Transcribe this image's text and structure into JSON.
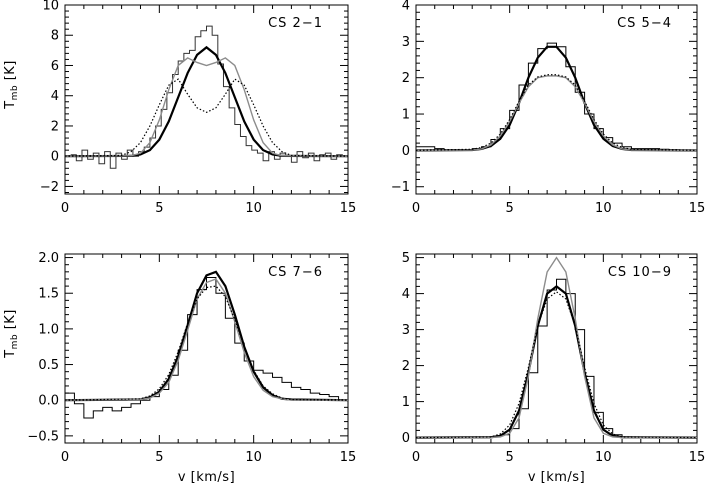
{
  "chart_data": [
    {
      "type": "line",
      "title": "CS 2−1",
      "ylabel": "T",
      "ylabel_sub": "mb",
      "ylabel_unit": "[K]",
      "xlabel": "",
      "xlim": [
        0,
        15
      ],
      "ylim": [
        -2.5,
        10
      ],
      "xticks": [
        0,
        5,
        10,
        15
      ],
      "yticks": [
        -2,
        0,
        2,
        4,
        6,
        8,
        10
      ],
      "observed": {
        "style": "histogram",
        "x": [
          0.3,
          0.6,
          0.9,
          1.2,
          1.5,
          1.8,
          2.1,
          2.4,
          2.7,
          3.0,
          3.3,
          3.6,
          3.9,
          4.2,
          4.5,
          4.8,
          5.1,
          5.4,
          5.7,
          6.0,
          6.3,
          6.6,
          6.9,
          7.2,
          7.5,
          7.8,
          8.1,
          8.4,
          8.7,
          9.0,
          9.3,
          9.6,
          9.9,
          10.2,
          10.5,
          10.8,
          11.1,
          11.4,
          11.7,
          12.0,
          12.3,
          12.6,
          12.9,
          13.2,
          13.5,
          13.8,
          14.1,
          14.4,
          14.7
        ],
        "y": [
          0.1,
          -0.3,
          0.4,
          -0.2,
          0.2,
          -0.5,
          0.3,
          -0.8,
          0.2,
          -0.2,
          0.4,
          0.0,
          0.3,
          0.6,
          1.2,
          2.0,
          3.1,
          4.2,
          5.4,
          6.3,
          6.8,
          7.0,
          7.9,
          8.3,
          8.6,
          8.0,
          6.1,
          4.6,
          3.2,
          2.1,
          1.3,
          0.7,
          0.4,
          0.2,
          -0.3,
          0.3,
          -0.2,
          0.2,
          0.0,
          -0.4,
          0.3,
          -0.1,
          0.2,
          -0.3,
          0.1,
          0.2,
          -0.2,
          0.1,
          0.0
        ]
      },
      "models": [
        {
          "style": "thick",
          "x": [
            0,
            3.5,
            4,
            4.5,
            5,
            5.5,
            6,
            6.5,
            7,
            7.5,
            8,
            8.5,
            9,
            9.5,
            10,
            10.5,
            11,
            11.5,
            15
          ],
          "y": [
            0,
            0.02,
            0.12,
            0.4,
            1.1,
            2.3,
            3.9,
            5.5,
            6.7,
            7.2,
            6.7,
            5.5,
            3.9,
            2.3,
            1.1,
            0.4,
            0.12,
            0.02,
            0
          ]
        },
        {
          "style": "gray",
          "x": [
            0,
            3.5,
            4,
            4.5,
            5,
            5.5,
            6,
            6.5,
            7,
            7.5,
            8,
            8.5,
            9,
            9.5,
            10,
            10.5,
            11,
            11.5,
            15
          ],
          "y": [
            0,
            0.03,
            0.2,
            0.9,
            2.4,
            4.4,
            6.0,
            6.5,
            6.2,
            6.0,
            6.2,
            6.5,
            6.0,
            4.4,
            2.4,
            0.9,
            0.2,
            0.03,
            0
          ]
        },
        {
          "style": "dotted",
          "x": [
            0,
            3,
            3.5,
            4,
            4.5,
            5,
            5.5,
            6,
            6.5,
            7,
            7.5,
            8,
            8.5,
            9,
            9.5,
            10,
            10.5,
            11,
            11.5,
            12,
            15
          ],
          "y": [
            0,
            0.05,
            0.3,
            0.9,
            2.0,
            3.4,
            4.7,
            5.1,
            4.1,
            3.2,
            2.9,
            3.2,
            4.1,
            5.1,
            4.7,
            3.4,
            2.0,
            0.9,
            0.3,
            0.05,
            0
          ]
        }
      ]
    },
    {
      "type": "line",
      "title": "CS 5−4",
      "ylabel": "",
      "xlabel": "",
      "xlim": [
        0,
        15
      ],
      "ylim": [
        -1.2,
        4
      ],
      "xticks": [
        0,
        5,
        10,
        15
      ],
      "yticks": [
        -1,
        0,
        1,
        2,
        3,
        4
      ],
      "observed": {
        "style": "histogram",
        "x": [
          0,
          0.5,
          1,
          1.5,
          2,
          2.5,
          3,
          3.5,
          4,
          4.5,
          5,
          5.5,
          6,
          6.5,
          7,
          7.5,
          8,
          8.5,
          9,
          9.5,
          10,
          10.5,
          11,
          11.5,
          12,
          12.5,
          13,
          13.5,
          14,
          14.5
        ],
        "y": [
          0.1,
          0.1,
          0.05,
          0.0,
          0.0,
          0.02,
          0.05,
          0.1,
          0.3,
          0.6,
          1.1,
          1.8,
          2.4,
          2.8,
          2.95,
          2.85,
          2.3,
          1.6,
          1.0,
          0.6,
          0.35,
          0.2,
          0.1,
          0.05,
          0.05,
          0.05,
          0.03,
          0.02,
          0.0,
          0.0
        ]
      },
      "models": [
        {
          "style": "thick",
          "x": [
            0,
            3,
            3.5,
            4,
            4.5,
            5,
            5.5,
            6,
            6.5,
            7,
            7.5,
            8,
            8.5,
            9,
            9.5,
            10,
            10.5,
            11,
            11.5,
            15
          ],
          "y": [
            0,
            0.01,
            0.04,
            0.12,
            0.32,
            0.7,
            1.3,
            2.0,
            2.55,
            2.85,
            2.85,
            2.55,
            2.0,
            1.3,
            0.7,
            0.32,
            0.12,
            0.04,
            0.01,
            0
          ]
        },
        {
          "style": "gray",
          "x": [
            0,
            3,
            3.5,
            4,
            4.5,
            5,
            5.5,
            6,
            6.5,
            7,
            7.5,
            8,
            8.5,
            9,
            9.5,
            10,
            10.5,
            11,
            11.5,
            15
          ],
          "y": [
            0,
            0.01,
            0.04,
            0.15,
            0.4,
            0.8,
            1.3,
            1.75,
            2.0,
            2.05,
            2.05,
            2.0,
            1.75,
            1.3,
            0.8,
            0.4,
            0.15,
            0.04,
            0.01,
            0
          ]
        },
        {
          "style": "dotted",
          "x": [
            0,
            3,
            3.5,
            4,
            4.5,
            5,
            5.5,
            6,
            6.5,
            7,
            7.5,
            8,
            8.5,
            9,
            9.5,
            10,
            10.5,
            11,
            11.5,
            15
          ],
          "y": [
            0,
            0.03,
            0.08,
            0.2,
            0.45,
            0.85,
            1.35,
            1.8,
            2.02,
            2.08,
            2.08,
            2.02,
            1.8,
            1.35,
            0.85,
            0.45,
            0.2,
            0.08,
            0.03,
            0
          ]
        }
      ]
    },
    {
      "type": "line",
      "title": "CS 7−6",
      "ylabel": "T",
      "ylabel_sub": "mb",
      "ylabel_unit": "[K]",
      "xlabel": "v [km/s]",
      "xlim": [
        0,
        15
      ],
      "ylim": [
        -0.6,
        2.05
      ],
      "xticks": [
        0,
        5,
        10,
        15
      ],
      "yticks": [
        -0.5,
        0.0,
        0.5,
        1.0,
        1.5,
        2.0
      ],
      "ytick_labels": [
        "−0.5",
        "0.0",
        "0.5",
        "1.0",
        "1.5",
        "2.0"
      ],
      "observed": {
        "style": "histogram",
        "x": [
          0,
          0.5,
          1,
          1.5,
          2,
          2.5,
          3,
          3.5,
          4,
          4.5,
          5,
          5.5,
          6,
          6.5,
          7,
          7.5,
          8,
          8.5,
          9,
          9.5,
          10,
          10.5,
          11,
          11.5,
          12,
          12.5,
          13,
          13.5,
          14,
          14.5
        ],
        "y": [
          0.1,
          -0.05,
          -0.25,
          -0.15,
          -0.1,
          -0.15,
          -0.1,
          -0.05,
          0.0,
          0.05,
          0.15,
          0.35,
          0.7,
          1.2,
          1.55,
          1.72,
          1.5,
          1.15,
          0.8,
          0.55,
          0.42,
          0.38,
          0.32,
          0.25,
          0.18,
          0.15,
          0.1,
          0.08,
          0.05,
          0.0
        ]
      },
      "models": [
        {
          "style": "thick",
          "x": [
            0,
            4,
            4.5,
            5,
            5.5,
            6,
            6.5,
            7,
            7.5,
            8,
            8.5,
            9,
            9.5,
            10,
            10.5,
            11,
            11.5,
            12,
            15
          ],
          "y": [
            0,
            0.01,
            0.04,
            0.12,
            0.3,
            0.62,
            1.05,
            1.5,
            1.75,
            1.8,
            1.6,
            1.2,
            0.75,
            0.4,
            0.18,
            0.07,
            0.02,
            0.01,
            0
          ]
        },
        {
          "style": "gray",
          "x": [
            0,
            4,
            4.5,
            5,
            5.5,
            6,
            6.5,
            7,
            7.5,
            8,
            8.5,
            9,
            9.5,
            10,
            10.5,
            11,
            11.5,
            12,
            15
          ],
          "y": [
            0,
            0.01,
            0.03,
            0.1,
            0.25,
            0.56,
            0.98,
            1.42,
            1.65,
            1.7,
            1.5,
            1.1,
            0.67,
            0.33,
            0.14,
            0.05,
            0.02,
            0.0,
            0
          ]
        },
        {
          "style": "dotted",
          "x": [
            0,
            4,
            4.5,
            5,
            5.5,
            6,
            6.5,
            7,
            7.5,
            8,
            8.5,
            9,
            9.5,
            10,
            10.5,
            11,
            11.5,
            12,
            15
          ],
          "y": [
            0,
            0.02,
            0.06,
            0.16,
            0.36,
            0.68,
            1.08,
            1.42,
            1.58,
            1.6,
            1.45,
            1.13,
            0.75,
            0.42,
            0.2,
            0.09,
            0.03,
            0.01,
            0
          ]
        }
      ]
    },
    {
      "type": "line",
      "title": "CS 10−9",
      "ylabel": "",
      "xlabel": "v [km/s]",
      "xlim": [
        0,
        15
      ],
      "ylim": [
        -0.15,
        5.1
      ],
      "xticks": [
        0,
        5,
        10,
        15
      ],
      "yticks": [
        0,
        1,
        2,
        3,
        4,
        5
      ],
      "observed": {
        "style": "histogram",
        "x": [
          0,
          0.5,
          1,
          1.5,
          2,
          2.5,
          3,
          3.5,
          4,
          4.5,
          5,
          5.5,
          6,
          6.5,
          7,
          7.5,
          8,
          8.5,
          9,
          9.5,
          10,
          10.5,
          11,
          11.5,
          12,
          12.5,
          13,
          13.5,
          14,
          14.5
        ],
        "y": [
          0,
          0,
          0,
          0,
          0,
          0,
          0,
          0,
          0.02,
          0.08,
          0.25,
          0.8,
          1.8,
          3.1,
          4.1,
          4.4,
          4.0,
          3.0,
          1.7,
          0.7,
          0.25,
          0.08,
          0.02,
          0,
          0,
          0,
          0,
          0,
          0,
          0
        ]
      },
      "models": [
        {
          "style": "thick",
          "x": [
            0,
            4,
            4.5,
            5,
            5.5,
            6,
            6.5,
            7,
            7.5,
            8,
            8.5,
            9,
            9.5,
            10,
            10.5,
            11,
            15
          ],
          "y": [
            0,
            0.01,
            0.05,
            0.22,
            0.75,
            1.8,
            3.1,
            4.0,
            4.2,
            4.0,
            3.1,
            1.8,
            0.75,
            0.22,
            0.05,
            0.01,
            0
          ]
        },
        {
          "style": "gray",
          "x": [
            0,
            4,
            4.5,
            5,
            5.5,
            6,
            6.5,
            7,
            7.5,
            8,
            8.5,
            9,
            9.5,
            10,
            10.5,
            11,
            15
          ],
          "y": [
            0,
            0.0,
            0.02,
            0.12,
            0.55,
            1.7,
            3.3,
            4.6,
            5.0,
            4.6,
            3.3,
            1.7,
            0.55,
            0.12,
            0.02,
            0.0,
            0
          ]
        },
        {
          "style": "dotted",
          "x": [
            0,
            4,
            4.5,
            5,
            5.5,
            6,
            6.5,
            7,
            7.5,
            8,
            8.5,
            9,
            9.5,
            10,
            10.5,
            11,
            15
          ],
          "y": [
            0,
            0.02,
            0.1,
            0.35,
            0.95,
            1.95,
            3.1,
            3.85,
            4.05,
            3.85,
            3.1,
            1.95,
            0.95,
            0.35,
            0.1,
            0.02,
            0
          ]
        }
      ]
    }
  ]
}
